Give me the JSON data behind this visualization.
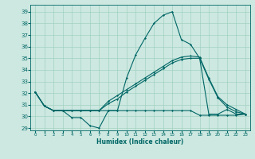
{
  "xlabel": "Humidex (Indice chaleur)",
  "bg_color": "#cce8e0",
  "line_color": "#006666",
  "grid_color": "#99ccbb",
  "xlim": [
    -0.5,
    23.5
  ],
  "ylim": [
    28.8,
    39.6
  ],
  "yticks": [
    29,
    30,
    31,
    32,
    33,
    34,
    35,
    36,
    37,
    38,
    39
  ],
  "xticks": [
    0,
    1,
    2,
    3,
    4,
    5,
    6,
    7,
    8,
    9,
    10,
    11,
    12,
    13,
    14,
    15,
    16,
    17,
    18,
    19,
    20,
    21,
    22,
    23
  ],
  "lines": [
    [
      32.1,
      30.9,
      30.5,
      30.5,
      29.9,
      29.9,
      29.2,
      29.0,
      30.5,
      30.5,
      33.3,
      35.3,
      36.7,
      38.0,
      38.7,
      39.0,
      36.6,
      36.2,
      35.0,
      30.2,
      30.2,
      30.6,
      30.2,
      30.2
    ],
    [
      32.1,
      30.9,
      30.5,
      30.5,
      30.5,
      30.5,
      30.5,
      30.5,
      30.5,
      30.5,
      30.5,
      30.5,
      30.5,
      30.5,
      30.5,
      30.5,
      30.5,
      30.5,
      30.1,
      30.1,
      30.1,
      30.1,
      30.1,
      30.2
    ],
    [
      32.1,
      30.9,
      30.5,
      30.5,
      30.5,
      30.5,
      30.5,
      30.5,
      31.1,
      31.5,
      32.1,
      32.6,
      33.1,
      33.6,
      34.1,
      34.6,
      34.9,
      35.0,
      35.0,
      33.2,
      31.6,
      30.8,
      30.4,
      30.2
    ],
    [
      32.1,
      30.9,
      30.5,
      30.5,
      30.5,
      30.5,
      30.5,
      30.5,
      31.3,
      31.8,
      32.3,
      32.8,
      33.3,
      33.8,
      34.3,
      34.8,
      35.1,
      35.2,
      35.1,
      33.3,
      31.7,
      31.0,
      30.6,
      30.2
    ]
  ]
}
